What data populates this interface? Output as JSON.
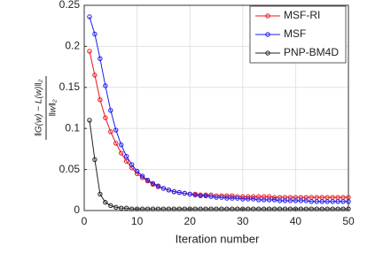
{
  "chart_data": {
    "type": "line",
    "x_label": "Iteration number",
    "y_label_numerator": "‖G(w) − L(w)‖₂",
    "y_label_denominator": "‖w‖₂",
    "x": [
      1,
      2,
      3,
      4,
      5,
      6,
      7,
      8,
      9,
      10,
      11,
      12,
      13,
      14,
      15,
      16,
      17,
      18,
      19,
      20,
      21,
      22,
      23,
      24,
      25,
      26,
      27,
      28,
      29,
      30,
      31,
      32,
      33,
      34,
      35,
      36,
      37,
      38,
      39,
      40,
      41,
      42,
      43,
      44,
      45,
      46,
      47,
      48,
      49,
      50
    ],
    "series": [
      {
        "name": "MSF-RI",
        "color": "#e8141b",
        "values": [
          0.194,
          0.165,
          0.135,
          0.113,
          0.096,
          0.082,
          0.07,
          0.06,
          0.052,
          0.045,
          0.04,
          0.036,
          0.032,
          0.029,
          0.027,
          0.025,
          0.023,
          0.022,
          0.021,
          0.02,
          0.02,
          0.019,
          0.019,
          0.019,
          0.018,
          0.018,
          0.018,
          0.018,
          0.017,
          0.017,
          0.017,
          0.017,
          0.017,
          0.017,
          0.017,
          0.016,
          0.016,
          0.016,
          0.016,
          0.016,
          0.016,
          0.016,
          0.016,
          0.016,
          0.016,
          0.016,
          0.016,
          0.016,
          0.016,
          0.016
        ]
      },
      {
        "name": "MSF",
        "color": "#1c1cf0",
        "values": [
          0.236,
          0.215,
          0.185,
          0.152,
          0.122,
          0.098,
          0.08,
          0.066,
          0.056,
          0.048,
          0.042,
          0.037,
          0.033,
          0.03,
          0.027,
          0.025,
          0.023,
          0.022,
          0.021,
          0.02,
          0.019,
          0.018,
          0.018,
          0.017,
          0.016,
          0.016,
          0.015,
          0.015,
          0.015,
          0.014,
          0.014,
          0.014,
          0.013,
          0.013,
          0.013,
          0.013,
          0.012,
          0.012,
          0.012,
          0.012,
          0.012,
          0.012,
          0.011,
          0.011,
          0.011,
          0.011,
          0.011,
          0.011,
          0.011,
          0.011
        ]
      },
      {
        "name": "PNP-BM4D",
        "color": "#222222",
        "values": [
          0.11,
          0.062,
          0.02,
          0.01,
          0.006,
          0.004,
          0.003,
          0.003,
          0.002,
          0.002,
          0.002,
          0.002,
          0.002,
          0.002,
          0.002,
          0.002,
          0.002,
          0.002,
          0.002,
          0.002,
          0.002,
          0.002,
          0.002,
          0.002,
          0.002,
          0.002,
          0.002,
          0.002,
          0.002,
          0.002,
          0.002,
          0.002,
          0.002,
          0.002,
          0.002,
          0.002,
          0.002,
          0.002,
          0.002,
          0.002,
          0.002,
          0.002,
          0.002,
          0.002,
          0.002,
          0.002,
          0.002,
          0.002,
          0.002,
          0.002
        ]
      }
    ],
    "xlim": [
      0,
      50
    ],
    "xticks": [
      0,
      10,
      20,
      30,
      40,
      50
    ],
    "ylim": [
      0,
      0.25
    ],
    "yticks": [
      0,
      0.05,
      0.1,
      0.15,
      0.2,
      0.25
    ],
    "grid": true,
    "legend": "upper-right"
  }
}
